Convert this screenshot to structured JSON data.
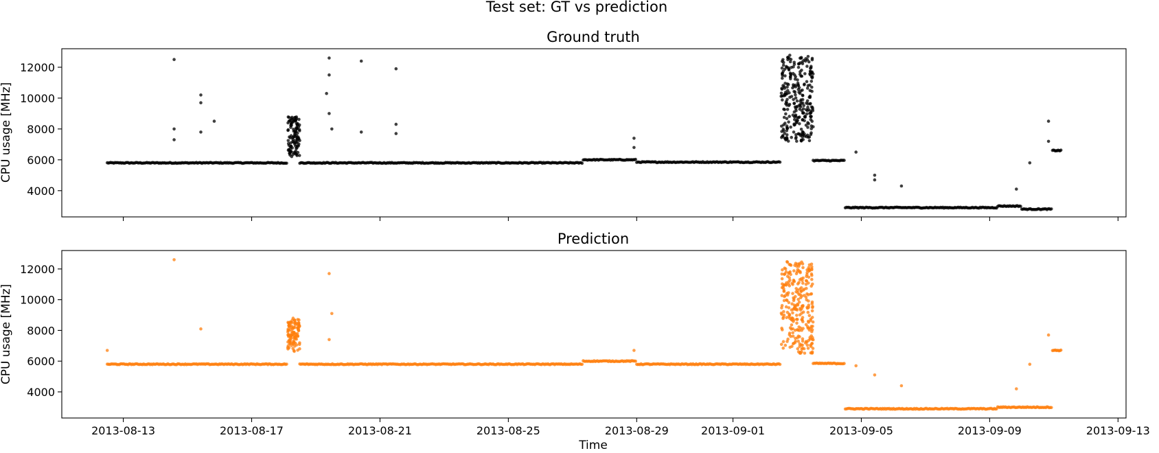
{
  "figure": {
    "suptitle": "Test set: GT vs prediction"
  },
  "chart_data": [
    {
      "type": "scatter",
      "title": "Ground truth",
      "xlabel": "",
      "ylabel": "CPU usage [MHz]",
      "x_type": "date",
      "xlim": [
        "2013-08-11T02:00",
        "2013-09-13T06:00"
      ],
      "ylim": [
        2300,
        13200
      ],
      "xticks": [
        "2013-08-13",
        "2013-08-17",
        "2013-08-21",
        "2013-08-25",
        "2013-08-29",
        "2013-09-01",
        "2013-09-05",
        "2013-09-09",
        "2013-09-13"
      ],
      "yticks": [
        4000,
        6000,
        8000,
        10000,
        12000
      ],
      "grid": false,
      "color": "#000000",
      "segments": [
        {
          "x": [
            "2013-08-12T12:00",
            "2013-08-18T03:00"
          ],
          "y": 5800
        },
        {
          "x": [
            "2013-08-18T03:00",
            "2013-08-18T12:00"
          ],
          "y": 7500,
          "spread": 1300
        },
        {
          "x": [
            "2013-08-18T12:00",
            "2013-08-19T14:00"
          ],
          "y": 5800
        },
        {
          "x": [
            "2013-08-19T14:00",
            "2013-08-27T08:00"
          ],
          "y": 5800
        },
        {
          "x": [
            "2013-08-27T08:00",
            "2013-08-29T00:00"
          ],
          "y": 6000
        },
        {
          "x": [
            "2013-08-29T00:00",
            "2013-09-02T12:00"
          ],
          "y": 5850
        },
        {
          "x": [
            "2013-09-02T12:00",
            "2013-09-03T12:00"
          ],
          "y": 10000,
          "spread": 2800
        },
        {
          "x": [
            "2013-09-03T12:00",
            "2013-09-04T12:00"
          ],
          "y": 5950
        },
        {
          "x": [
            "2013-09-04T12:00",
            "2013-09-09T06:00"
          ],
          "y": 2900
        },
        {
          "x": [
            "2013-09-09T06:00",
            "2013-09-10T00:00"
          ],
          "y": 3000
        },
        {
          "x": [
            "2013-09-10T00:00",
            "2013-09-10T23:00"
          ],
          "y": 2800
        },
        {
          "x": [
            "2013-09-10T23:00",
            "2013-09-11T06:00"
          ],
          "y": 6600
        }
      ],
      "outliers": [
        {
          "x": "2013-08-14T14:00",
          "y": 12500
        },
        {
          "x": "2013-08-14T14:00",
          "y": 8000
        },
        {
          "x": "2013-08-14T14:00",
          "y": 7300
        },
        {
          "x": "2013-08-15T10:00",
          "y": 10200
        },
        {
          "x": "2013-08-15T10:00",
          "y": 9700
        },
        {
          "x": "2013-08-15T10:00",
          "y": 7800
        },
        {
          "x": "2013-08-15T20:00",
          "y": 8500
        },
        {
          "x": "2013-08-19T10:00",
          "y": 12600
        },
        {
          "x": "2013-08-19T10:00",
          "y": 11500
        },
        {
          "x": "2013-08-19T08:00",
          "y": 10300
        },
        {
          "x": "2013-08-19T10:00",
          "y": 9000
        },
        {
          "x": "2013-08-19T12:00",
          "y": 8000
        },
        {
          "x": "2013-08-20T10:00",
          "y": 12400
        },
        {
          "x": "2013-08-20T10:00",
          "y": 7800
        },
        {
          "x": "2013-08-21T12:00",
          "y": 11900
        },
        {
          "x": "2013-08-21T12:00",
          "y": 8300
        },
        {
          "x": "2013-08-21T12:00",
          "y": 7700
        },
        {
          "x": "2013-08-28T22:00",
          "y": 7400
        },
        {
          "x": "2013-08-28T22:00",
          "y": 6800
        },
        {
          "x": "2013-09-04T20:00",
          "y": 6500
        },
        {
          "x": "2013-09-05T10:00",
          "y": 5000
        },
        {
          "x": "2013-09-05T10:00",
          "y": 4700
        },
        {
          "x": "2013-09-06T06:00",
          "y": 4300
        },
        {
          "x": "2013-09-09T20:00",
          "y": 4100
        },
        {
          "x": "2013-09-10T06:00",
          "y": 5800
        },
        {
          "x": "2013-09-10T20:00",
          "y": 8500
        },
        {
          "x": "2013-09-10T20:00",
          "y": 7200
        }
      ]
    },
    {
      "type": "scatter",
      "title": "Prediction",
      "xlabel": "Time",
      "ylabel": "CPU usage [MHz]",
      "x_type": "date",
      "xlim": [
        "2013-08-11T02:00",
        "2013-09-13T06:00"
      ],
      "ylim": [
        2300,
        13200
      ],
      "xticks": [
        "2013-08-13",
        "2013-08-17",
        "2013-08-21",
        "2013-08-25",
        "2013-08-29",
        "2013-09-01",
        "2013-09-05",
        "2013-09-09",
        "2013-09-13"
      ],
      "yticks": [
        4000,
        6000,
        8000,
        10000,
        12000
      ],
      "grid": false,
      "color": "#ff7f0e",
      "segments": [
        {
          "x": [
            "2013-08-12T12:00",
            "2013-08-18T03:00"
          ],
          "y": 5800
        },
        {
          "x": [
            "2013-08-18T03:00",
            "2013-08-18T12:00"
          ],
          "y": 7700,
          "spread": 1100
        },
        {
          "x": [
            "2013-08-18T12:00",
            "2013-08-19T14:00"
          ],
          "y": 5800
        },
        {
          "x": [
            "2013-08-19T14:00",
            "2013-08-27T08:00"
          ],
          "y": 5800
        },
        {
          "x": [
            "2013-08-27T08:00",
            "2013-08-29T00:00"
          ],
          "y": 6000
        },
        {
          "x": [
            "2013-08-29T00:00",
            "2013-09-02T12:00"
          ],
          "y": 5800
        },
        {
          "x": [
            "2013-09-02T12:00",
            "2013-09-03T12:00"
          ],
          "y": 9500,
          "spread": 3000
        },
        {
          "x": [
            "2013-09-03T12:00",
            "2013-09-04T12:00"
          ],
          "y": 5850
        },
        {
          "x": [
            "2013-09-04T12:00",
            "2013-09-09T06:00"
          ],
          "y": 2900
        },
        {
          "x": [
            "2013-09-09T06:00",
            "2013-09-10T00:00"
          ],
          "y": 3000
        },
        {
          "x": [
            "2013-09-10T00:00",
            "2013-09-10T23:00"
          ],
          "y": 3000
        },
        {
          "x": [
            "2013-09-10T23:00",
            "2013-09-11T06:00"
          ],
          "y": 6700
        }
      ],
      "outliers": [
        {
          "x": "2013-08-12T12:00",
          "y": 6700
        },
        {
          "x": "2013-08-14T14:00",
          "y": 12600
        },
        {
          "x": "2013-08-15T10:00",
          "y": 8100
        },
        {
          "x": "2013-08-19T10:00",
          "y": 11700
        },
        {
          "x": "2013-08-19T12:00",
          "y": 9100
        },
        {
          "x": "2013-08-19T10:00",
          "y": 7400
        },
        {
          "x": "2013-08-28T22:00",
          "y": 6700
        },
        {
          "x": "2013-09-04T20:00",
          "y": 5700
        },
        {
          "x": "2013-09-05T10:00",
          "y": 5100
        },
        {
          "x": "2013-09-06T06:00",
          "y": 4400
        },
        {
          "x": "2013-09-09T20:00",
          "y": 4200
        },
        {
          "x": "2013-09-10T06:00",
          "y": 5800
        },
        {
          "x": "2013-09-10T20:00",
          "y": 7700
        }
      ]
    }
  ]
}
